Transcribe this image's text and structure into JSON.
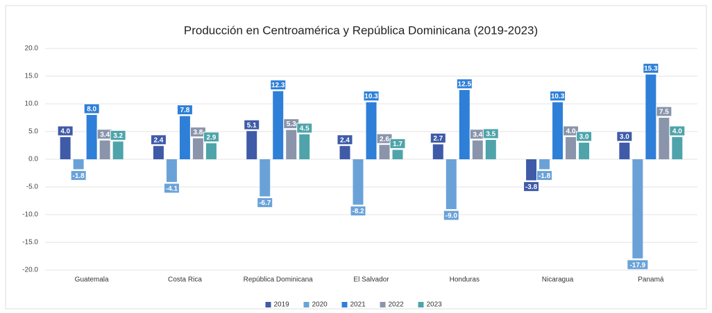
{
  "chart_data": {
    "type": "bar",
    "title": "Producción en Centroamérica y República Dominicana (2019-2023)",
    "categories": [
      "Guatemala",
      "Costa Rica",
      "República Dominicana",
      "El Salvador",
      "Honduras",
      "Nicaragua",
      "Panamá"
    ],
    "series": [
      {
        "name": "2019",
        "color": "#3f5ba8",
        "values": [
          4.0,
          2.4,
          5.1,
          2.4,
          2.7,
          -3.8,
          3.0
        ],
        "value_labels": [
          "4.0",
          "2.4",
          "5.1",
          "2.4",
          "2.7",
          "-3.8",
          "3.0"
        ]
      },
      {
        "name": "2020",
        "color": "#6aa2d8",
        "values": [
          -1.8,
          -4.1,
          -6.7,
          -8.2,
          -9.0,
          -1.8,
          -17.9
        ],
        "value_labels": [
          "-1.8",
          "-4.1",
          "-6.7",
          "-8.2",
          "-9.0",
          "-1.8",
          "-17.9"
        ]
      },
      {
        "name": "2021",
        "color": "#2e7fd8",
        "values": [
          8.0,
          7.8,
          12.3,
          10.3,
          12.5,
          10.3,
          15.3
        ],
        "value_labels": [
          "8.0",
          "7.8",
          "12.3",
          "10.3",
          "12.5",
          "10.3",
          "15.3"
        ]
      },
      {
        "name": "2022",
        "color": "#8a95ab",
        "values": [
          3.4,
          3.8,
          5.3,
          2.6,
          3.4,
          4.0,
          7.5
        ],
        "value_labels": [
          "3.4",
          "3.8",
          "5.3",
          "2.6",
          "3.4",
          "4.0",
          "7.5"
        ]
      },
      {
        "name": "2023",
        "color": "#4ea4aa",
        "values": [
          3.2,
          2.9,
          4.5,
          1.7,
          3.5,
          3.0,
          4.0
        ],
        "value_labels": [
          "3.2",
          "2.9",
          "4.5",
          "1.7",
          "3.5",
          "3.0",
          "4.0"
        ]
      }
    ],
    "ylim": [
      -20,
      20
    ],
    "yticks": [
      {
        "value": -20,
        "label": "-20.0"
      },
      {
        "value": -15,
        "label": "-15.0"
      },
      {
        "value": -10,
        "label": "-10.0"
      },
      {
        "value": -5,
        "label": "-5.0"
      },
      {
        "value": 0,
        "label": "0.0"
      },
      {
        "value": 5,
        "label": "5.0"
      },
      {
        "value": 10,
        "label": "10.0"
      },
      {
        "value": 15,
        "label": "15.0"
      },
      {
        "value": 20,
        "label": "20.0"
      }
    ],
    "grid": true,
    "legend": "bottom"
  }
}
